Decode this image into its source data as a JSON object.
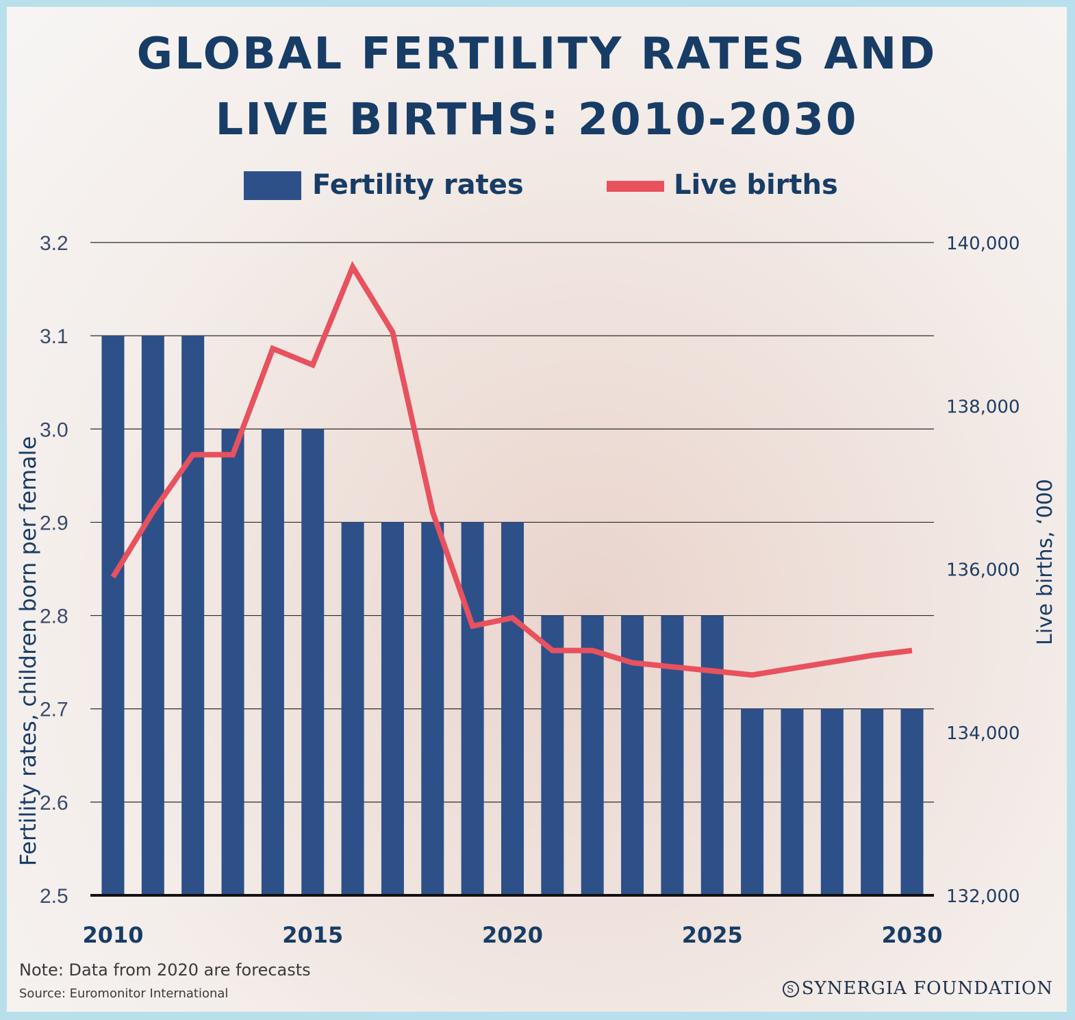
{
  "title": {
    "line1": "GLOBAL FERTILITY RATES AND",
    "line2": "LIVE BIRTHS: 2010-2030"
  },
  "legend": {
    "bars": "Fertility rates",
    "line": "Live births"
  },
  "colors": {
    "bars": "#2d5089",
    "line": "#e8515e",
    "text": "#173c66"
  },
  "footer": {
    "note": "Note: Data from 2020 are forecasts",
    "source": "Source: Euromonitor International",
    "brand": "SYNERGIA FOUNDATION",
    "brand_mark": "S"
  },
  "chart_data": {
    "type": "bar",
    "title": "GLOBAL FERTILITY RATES AND LIVE BIRTHS: 2010-2030",
    "x": [
      2010,
      2011,
      2012,
      2013,
      2014,
      2015,
      2016,
      2017,
      2018,
      2019,
      2020,
      2021,
      2022,
      2023,
      2024,
      2025,
      2026,
      2027,
      2028,
      2029,
      2030
    ],
    "x_tick_labels": [
      "2010",
      "2015",
      "2020",
      "2025",
      "2030"
    ],
    "x_tick_values": [
      2010,
      2015,
      2020,
      2025,
      2030
    ],
    "ylabel": "Fertility rates, children born per female",
    "ylim": [
      2.5,
      3.2
    ],
    "y_ticks": [
      "2.5",
      "2.6",
      "2.7",
      "2.8",
      "2.9",
      "3.0",
      "3.1",
      "3.2"
    ],
    "y2label": "Live births, ‘000",
    "y2lim": [
      132000,
      140000
    ],
    "y2_ticks": [
      "132,000",
      "134,000",
      "136,000",
      "138,000",
      "140,000"
    ],
    "grid": true,
    "legend_position": "top",
    "series": [
      {
        "name": "Fertility rates",
        "type": "bar",
        "axis": "left",
        "values": [
          3.1,
          3.1,
          3.1,
          3.0,
          3.0,
          3.0,
          2.9,
          2.9,
          2.9,
          2.9,
          2.9,
          2.8,
          2.8,
          2.8,
          2.8,
          2.8,
          2.7,
          2.7,
          2.7,
          2.7,
          2.7
        ]
      },
      {
        "name": "Live births",
        "type": "line",
        "axis": "right",
        "values": [
          135900,
          136700,
          137400,
          137400,
          138700,
          138500,
          139700,
          138900,
          136700,
          135300,
          135400,
          135000,
          135000,
          134850,
          134800,
          134750,
          134700,
          134780,
          134860,
          134940,
          135000
        ]
      }
    ]
  }
}
